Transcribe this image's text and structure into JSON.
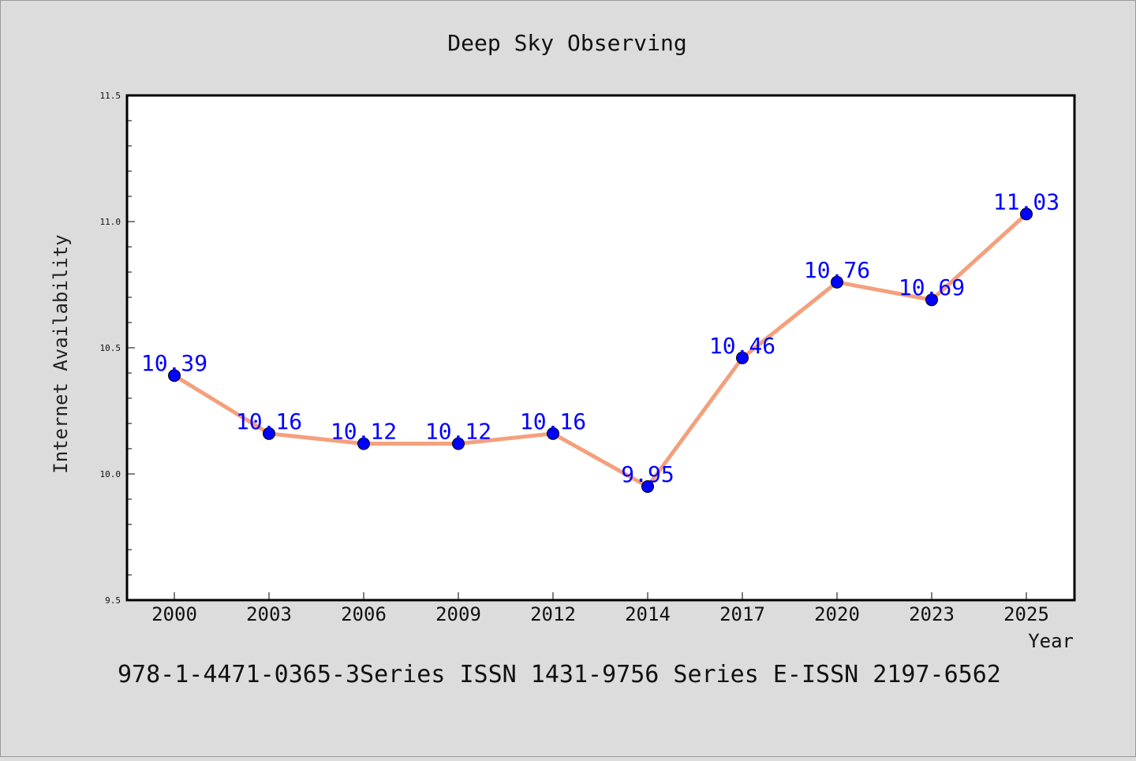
{
  "chart_data": {
    "type": "line",
    "title": "Deep Sky Observing",
    "xlabel": "Year",
    "ylabel": "Internet Availability",
    "caption": "978-1-4471-0365-3Series ISSN 1431-9756 Series E-ISSN 2197-6562",
    "categories": [
      "2000",
      "2003",
      "2006",
      "2009",
      "2012",
      "2014",
      "2017",
      "2020",
      "2023",
      "2025"
    ],
    "series": [
      {
        "values": [
          10.39,
          10.16,
          10.12,
          10.12,
          10.16,
          9.95,
          10.46,
          10.76,
          10.69,
          11.03
        ],
        "line_color": "#f4a07c",
        "marker_color": "#0000ff"
      }
    ],
    "data_labels": [
      "10.39",
      "10.16",
      "10.12",
      "10.12",
      "10.16",
      "9.95",
      "10.46",
      "10.76",
      "10.69",
      "11.03"
    ],
    "ylim": [
      9.5,
      11.5
    ],
    "yticks": [
      "9.5",
      "10.0",
      "10.5",
      "11.0",
      "11.5"
    ],
    "grid": false,
    "legend": "none",
    "background_color": "#dcdcdc",
    "plot_background_color": "#ffffff"
  }
}
